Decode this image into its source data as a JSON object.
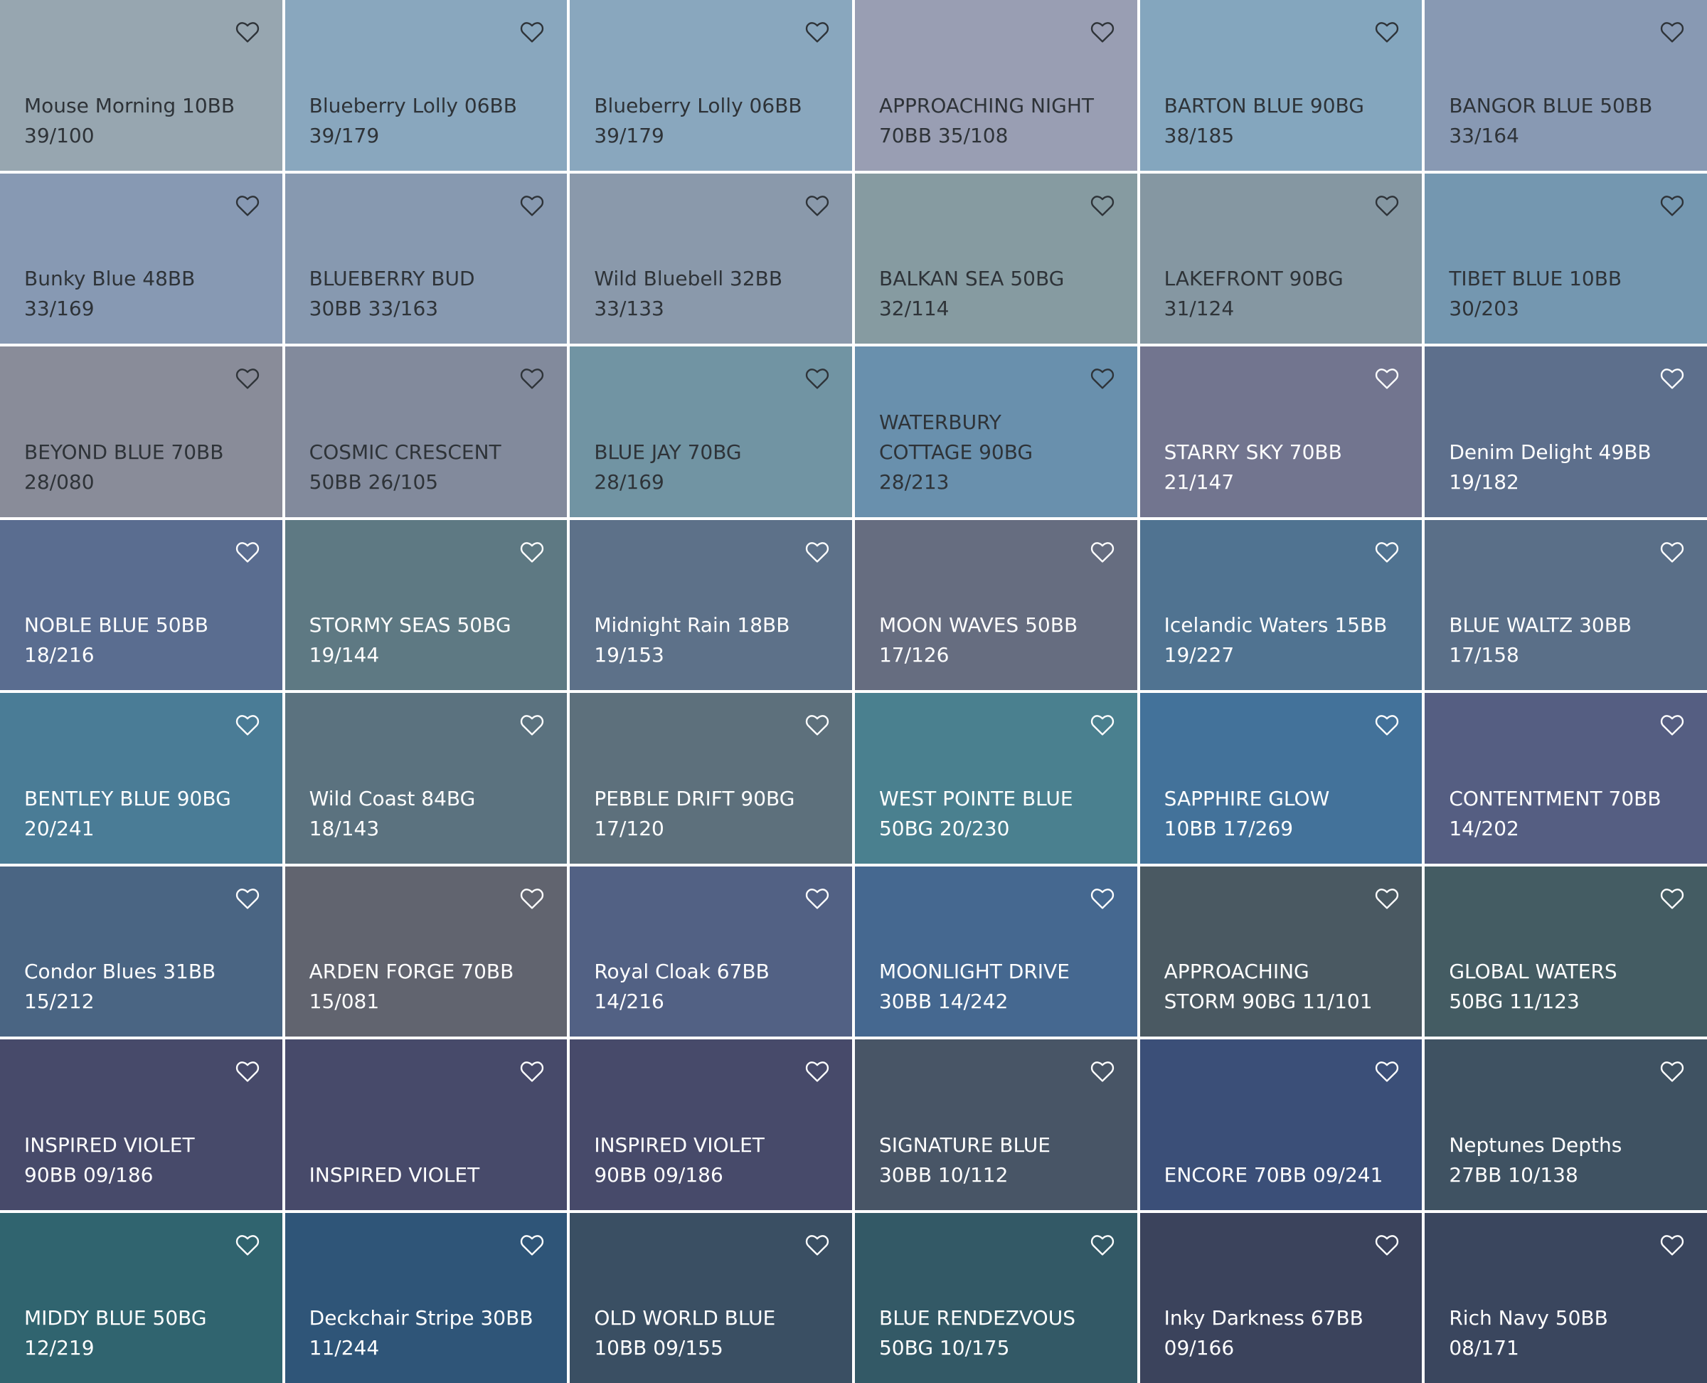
{
  "tiles": [
    {
      "lines": [
        "Mouse Morning 10BB",
        "39/100"
      ],
      "color": "#97a6b0",
      "text_color": "#2e3338"
    },
    {
      "lines": [
        "Blueberry Lolly 06BB",
        "39/179"
      ],
      "color": "#89a7be",
      "text_color": "#2e3338"
    },
    {
      "lines": [
        "Blueberry Lolly 06BB",
        "39/179"
      ],
      "color": "#89a7be",
      "text_color": "#2e3338"
    },
    {
      "lines": [
        "APPROACHING NIGHT",
        "70BB 35/108"
      ],
      "color": "#999eb3",
      "text_color": "#2e3338"
    },
    {
      "lines": [
        "BARTON BLUE 90BG",
        "38/185"
      ],
      "color": "#84a6be",
      "text_color": "#2e3338"
    },
    {
      "lines": [
        "BANGOR BLUE 50BB",
        "33/164"
      ],
      "color": "#8899b3",
      "text_color": "#2e3338"
    },
    {
      "lines": [
        "Bunky Blue 48BB",
        "33/169"
      ],
      "color": "#8799b3",
      "text_color": "#2e3338"
    },
    {
      "lines": [
        "BLUEBERRY BUD",
        "30BB 33/163"
      ],
      "color": "#8799b0",
      "text_color": "#2e3338"
    },
    {
      "lines": [
        "Wild Bluebell 32BB",
        "33/133"
      ],
      "color": "#8a99ab",
      "text_color": "#2e3338"
    },
    {
      "lines": [
        "BALKAN SEA 50BG",
        "32/114"
      ],
      "color": "#869ba1",
      "text_color": "#2e3338"
    },
    {
      "lines": [
        "LAKEFRONT 90BG",
        "31/124"
      ],
      "color": "#8597a2",
      "text_color": "#2e3338"
    },
    {
      "lines": [
        "TIBET BLUE 10BB",
        "30/203"
      ],
      "color": "#7497b0",
      "text_color": "#2e3338"
    },
    {
      "lines": [
        "BEYOND BLUE 70BB",
        "28/080"
      ],
      "color": "#898c99",
      "text_color": "#2e3338"
    },
    {
      "lines": [
        "COSMIC CRESCENT",
        "50BB 26/105"
      ],
      "color": "#828a9c",
      "text_color": "#2e3338"
    },
    {
      "lines": [
        "BLUE JAY 70BG",
        "28/169"
      ],
      "color": "#7194a3",
      "text_color": "#2e3338"
    },
    {
      "lines": [
        "WATERBURY",
        "COTTAGE 90BG",
        "28/213"
      ],
      "color": "#6990ad",
      "text_color": "#2e3338"
    },
    {
      "lines": [
        "STARRY SKY 70BB",
        "21/147"
      ],
      "color": "#72758f",
      "text_color": "#ffffff"
    },
    {
      "lines": [
        "Denim Delight 49BB",
        "19/182"
      ],
      "color": "#5d6f8c",
      "text_color": "#ffffff"
    },
    {
      "lines": [
        "NOBLE BLUE 50BB",
        "18/216"
      ],
      "color": "#5a6d90",
      "text_color": "#ffffff"
    },
    {
      "lines": [
        "STORMY SEAS 50BG",
        "19/144"
      ],
      "color": "#5e7983",
      "text_color": "#ffffff"
    },
    {
      "lines": [
        "Midnight Rain 18BB",
        "19/153"
      ],
      "color": "#5d7189",
      "text_color": "#ffffff"
    },
    {
      "lines": [
        "MOON WAVES 50BB",
        "17/126"
      ],
      "color": "#666d80",
      "text_color": "#ffffff"
    },
    {
      "lines": [
        "Icelandic Waters 15BB",
        "19/227"
      ],
      "color": "#507391",
      "text_color": "#ffffff"
    },
    {
      "lines": [
        "BLUE WALTZ 30BB",
        "17/158"
      ],
      "color": "#5a6f88",
      "text_color": "#ffffff"
    },
    {
      "lines": [
        "BENTLEY BLUE 90BG",
        "20/241"
      ],
      "color": "#4a7c96",
      "text_color": "#ffffff"
    },
    {
      "lines": [
        "Wild Coast 84BG",
        "18/143"
      ],
      "color": "#5b727f",
      "text_color": "#ffffff"
    },
    {
      "lines": [
        "PEBBLE DRIFT 90BG",
        "17/120"
      ],
      "color": "#5d707c",
      "text_color": "#ffffff"
    },
    {
      "lines": [
        "WEST POINTE BLUE",
        "50BG 20/230"
      ],
      "color": "#4a808f",
      "text_color": "#ffffff"
    },
    {
      "lines": [
        "SAPPHIRE GLOW",
        "10BB 17/269"
      ],
      "color": "#43729a",
      "text_color": "#ffffff"
    },
    {
      "lines": [
        "CONTENTMENT 70BB",
        "14/202"
      ],
      "color": "#555e82",
      "text_color": "#ffffff"
    },
    {
      "lines": [
        "Condor Blues 31BB",
        "15/212"
      ],
      "color": "#4a6583",
      "text_color": "#ffffff"
    },
    {
      "lines": [
        "ARDEN FORGE 70BB",
        "15/081"
      ],
      "color": "#61646f",
      "text_color": "#ffffff"
    },
    {
      "lines": [
        "Royal Cloak 67BB",
        "14/216"
      ],
      "color": "#526184",
      "text_color": "#ffffff"
    },
    {
      "lines": [
        "MOONLIGHT DRIVE",
        "30BB 14/242"
      ],
      "color": "#456890",
      "text_color": "#ffffff"
    },
    {
      "lines": [
        "APPROACHING",
        "STORM 90BG 11/101"
      ],
      "color": "#4a5962",
      "text_color": "#ffffff"
    },
    {
      "lines": [
        "GLOBAL WATERS",
        "50BG 11/123"
      ],
      "color": "#445c63",
      "text_color": "#ffffff"
    },
    {
      "lines": [
        "INSPIRED VIOLET",
        "90BB 09/186"
      ],
      "color": "#474a6a",
      "text_color": "#ffffff"
    },
    {
      "lines": [
        "INSPIRED VIOLET"
      ],
      "color": "#474a6a",
      "text_color": "#ffffff"
    },
    {
      "lines": [
        "INSPIRED VIOLET",
        "90BB 09/186"
      ],
      "color": "#474a6a",
      "text_color": "#ffffff"
    },
    {
      "lines": [
        "SIGNATURE BLUE",
        "30BB 10/112"
      ],
      "color": "#485566",
      "text_color": "#ffffff"
    },
    {
      "lines": [
        "ENCORE 70BB 09/241"
      ],
      "color": "#3b4f78",
      "text_color": "#ffffff"
    },
    {
      "lines": [
        "Neptunes Depths",
        "27BB 10/138"
      ],
      "color": "#3f5262",
      "text_color": "#ffffff"
    },
    {
      "lines": [
        "MIDDY BLUE 50BG",
        "12/219"
      ],
      "color": "#30646f",
      "text_color": "#ffffff"
    },
    {
      "lines": [
        "Deckchair Stripe 30BB",
        "11/244"
      ],
      "color": "#2f5578",
      "text_color": "#ffffff"
    },
    {
      "lines": [
        "OLD WORLD BLUE",
        "10BB 09/155"
      ],
      "color": "#3a4f63",
      "text_color": "#ffffff"
    },
    {
      "lines": [
        "BLUE RENDEZVOUS",
        "50BG 10/175"
      ],
      "color": "#335966",
      "text_color": "#ffffff"
    },
    {
      "lines": [
        "Inky Darkness 67BB",
        "09/166"
      ],
      "color": "#3b435c",
      "text_color": "#ffffff"
    },
    {
      "lines": [
        "Rich Navy 50BB",
        "08/171"
      ],
      "color": "#3a465e",
      "text_color": "#ffffff"
    }
  ]
}
